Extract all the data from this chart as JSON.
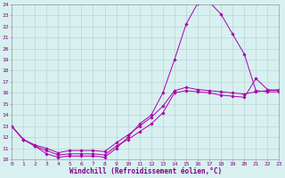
{
  "xlabel": "Windchill (Refroidissement éolien,°C)",
  "xlim": [
    0,
    23
  ],
  "ylim": [
    10,
    24
  ],
  "xticks": [
    0,
    1,
    2,
    3,
    4,
    5,
    6,
    7,
    8,
    9,
    10,
    11,
    12,
    13,
    14,
    15,
    16,
    17,
    18,
    19,
    20,
    21,
    22,
    23
  ],
  "yticks": [
    10,
    11,
    12,
    13,
    14,
    15,
    16,
    17,
    18,
    19,
    20,
    21,
    22,
    23,
    24
  ],
  "background_color": "#d8f0f0",
  "grid_color": "#b0d0d0",
  "line_color": "#aa00aa",
  "line1_x": [
    0,
    1,
    2,
    3,
    4,
    5,
    6,
    7,
    8,
    9,
    10,
    11,
    12,
    13,
    14,
    15,
    16,
    17,
    18,
    19,
    20,
    21,
    22,
    23
  ],
  "line1_y": [
    13.0,
    11.8,
    11.2,
    10.5,
    10.2,
    10.3,
    10.3,
    10.3,
    10.2,
    11.0,
    12.0,
    13.2,
    14.0,
    16.0,
    19.0,
    22.2,
    24.1,
    24.2,
    23.1,
    21.3,
    19.5,
    16.2,
    16.1,
    16.1
  ],
  "line2_x": [
    0,
    1,
    2,
    3,
    4,
    5,
    6,
    7,
    8,
    9,
    10,
    11,
    12,
    13,
    14,
    15,
    16,
    17,
    18,
    19,
    20,
    21,
    22,
    23
  ],
  "line2_y": [
    13.0,
    11.8,
    11.2,
    10.8,
    10.4,
    10.5,
    10.5,
    10.5,
    10.4,
    11.2,
    11.8,
    12.5,
    13.2,
    14.2,
    16.0,
    16.2,
    16.1,
    16.0,
    15.8,
    15.7,
    15.6,
    17.3,
    16.3,
    16.2
  ],
  "line3_x": [
    0,
    1,
    2,
    3,
    4,
    5,
    6,
    7,
    8,
    9,
    10,
    11,
    12,
    13,
    14,
    15,
    16,
    17,
    18,
    19,
    20,
    21,
    22,
    23
  ],
  "line3_y": [
    13.0,
    11.8,
    11.3,
    11.0,
    10.6,
    10.8,
    10.8,
    10.8,
    10.7,
    11.5,
    12.2,
    13.0,
    13.8,
    14.8,
    16.2,
    16.5,
    16.3,
    16.2,
    16.1,
    16.0,
    15.9,
    16.1,
    16.2,
    16.3
  ],
  "fontname": "monospace",
  "tick_fontsize": 4.5,
  "label_fontsize": 5.5
}
